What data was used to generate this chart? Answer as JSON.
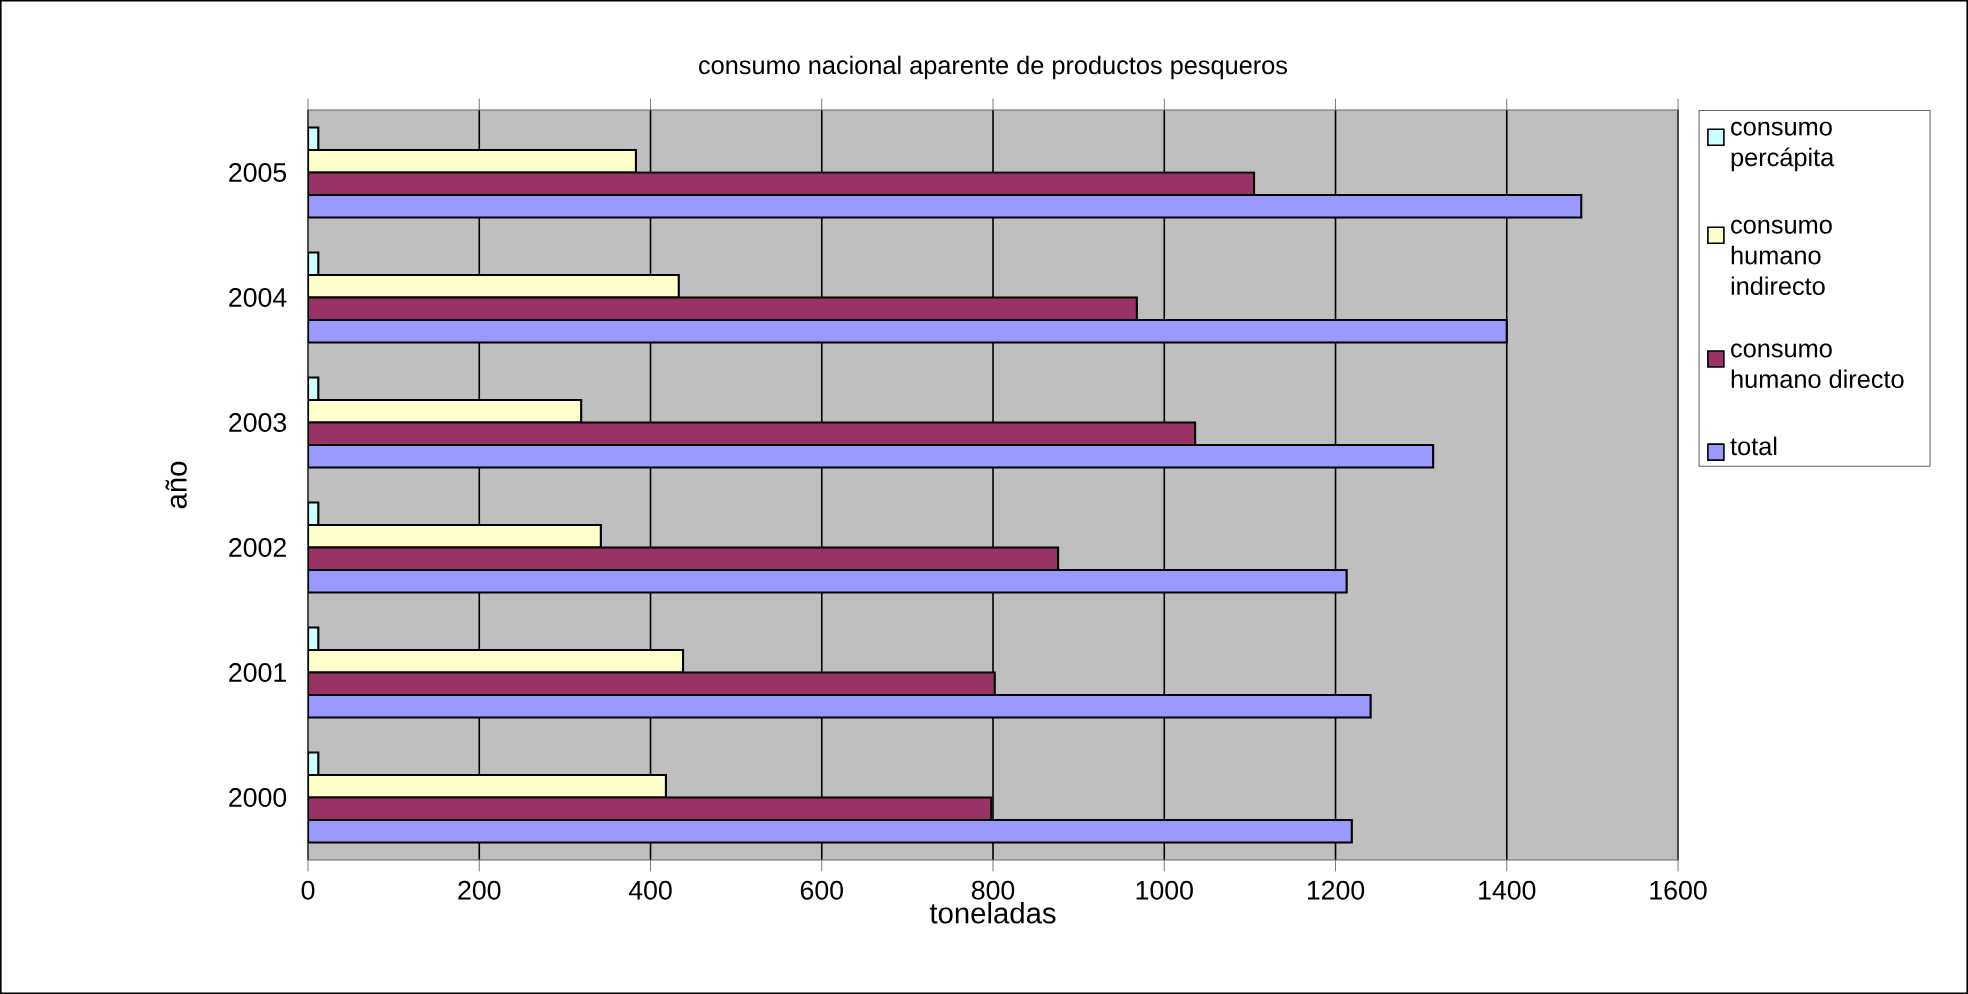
{
  "chart_data": {
    "type": "bar",
    "orientation": "horizontal",
    "title": "consumo nacional aparente de productos pesqueros",
    "xlabel": "toneladas",
    "ylabel": "año",
    "categories": [
      "2005",
      "2004",
      "2003",
      "2002",
      "2001",
      "2000"
    ],
    "series": [
      {
        "name": "consumo percápita",
        "color": "#ccffff",
        "values": [
          12,
          12,
          12,
          12,
          12,
          12
        ]
      },
      {
        "name": "consumo humano indirecto",
        "color": "#ffffcc",
        "values": [
          383,
          433,
          319,
          342,
          438,
          418
        ]
      },
      {
        "name": "consumo humano directo",
        "color": "#993366",
        "values": [
          1105,
          968,
          1036,
          876,
          802,
          798
        ]
      },
      {
        "name": "total",
        "color": "#9999ff",
        "values": [
          1487,
          1400,
          1314,
          1213,
          1241,
          1219
        ]
      }
    ],
    "xlim": [
      0,
      1600
    ],
    "xticks": [
      0,
      200,
      400,
      600,
      800,
      1000,
      1200,
      1400,
      1600
    ],
    "grid": "x",
    "legend": "right"
  }
}
